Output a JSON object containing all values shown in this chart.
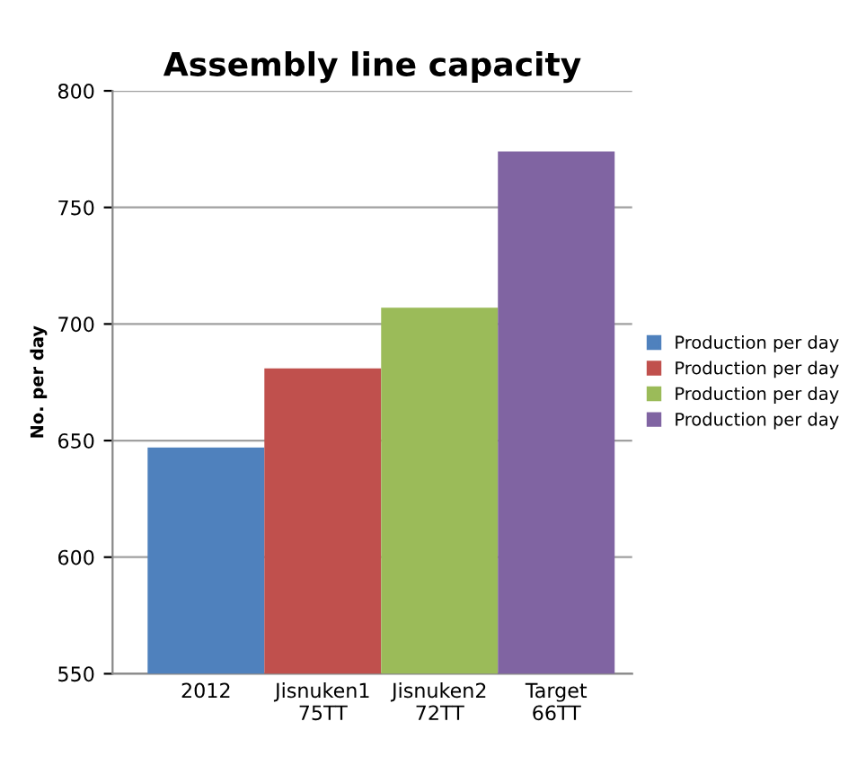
{
  "chart_data": {
    "type": "bar",
    "title": "Assembly line capacity",
    "ylabel": "No. per day",
    "categories": [
      "2012",
      "Jisnuken1\n75TT",
      "Jisnuken2\n72TT",
      "Target\n66TT"
    ],
    "series": [
      {
        "name": "Production per day",
        "color": "#4f81bd",
        "values": [
          647,
          null,
          null,
          null
        ]
      },
      {
        "name": "Production per day",
        "color": "#c0504d",
        "values": [
          null,
          681,
          null,
          null
        ]
      },
      {
        "name": "Production per day",
        "color": "#9bbb59",
        "values": [
          null,
          null,
          707,
          null
        ]
      },
      {
        "name": "Production per day",
        "color": "#8064a2",
        "values": [
          null,
          null,
          null,
          774
        ]
      }
    ],
    "ylim": [
      550,
      800
    ],
    "yticks": [
      550,
      600,
      650,
      700,
      750,
      800
    ],
    "grid": "y",
    "legend": "right"
  }
}
